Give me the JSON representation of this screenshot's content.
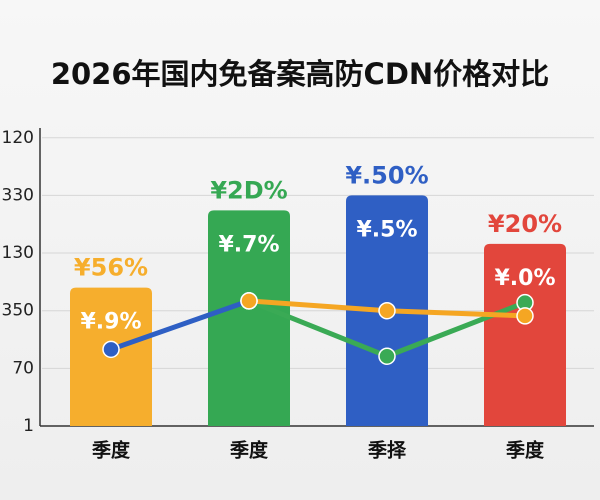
{
  "chart_data": {
    "type": "bar",
    "title": "2026年国内免备案高防CDN价格对比",
    "categories": [
      "季度",
      "季度",
      "季择",
      "季度"
    ],
    "values": [
      2.4,
      3.74,
      4.0,
      3.16
    ],
    "colors": [
      "#f6ae2d",
      "#35a853",
      "#2f5fc4",
      "#e2463c"
    ],
    "bar_labels": [
      "¥56%",
      "¥2D%",
      "¥.50%",
      "¥20%"
    ],
    "inner_labels": [
      "¥.9%",
      "¥.7%",
      "¥.5%",
      "¥.0%"
    ],
    "series": [
      {
        "color": "#2e5fc4",
        "values": [
          1.33,
          2.17,
          null,
          null
        ]
      },
      {
        "color": "#3aaa55",
        "values": [
          null,
          2.17,
          1.21,
          2.14
        ]
      },
      {
        "color": "#f5a623",
        "values": [
          null,
          2.17,
          2.0,
          1.91
        ]
      }
    ],
    "ylim": [
      0,
      5.1
    ],
    "yticks": [
      {
        "value": 0,
        "label": "1"
      },
      {
        "value": 1,
        "label": "70"
      },
      {
        "value": 2,
        "label": "350"
      },
      {
        "value": 3,
        "label": "130"
      },
      {
        "value": 4,
        "label": "330"
      },
      {
        "value": 5,
        "label": "120"
      }
    ],
    "grid": true
  }
}
